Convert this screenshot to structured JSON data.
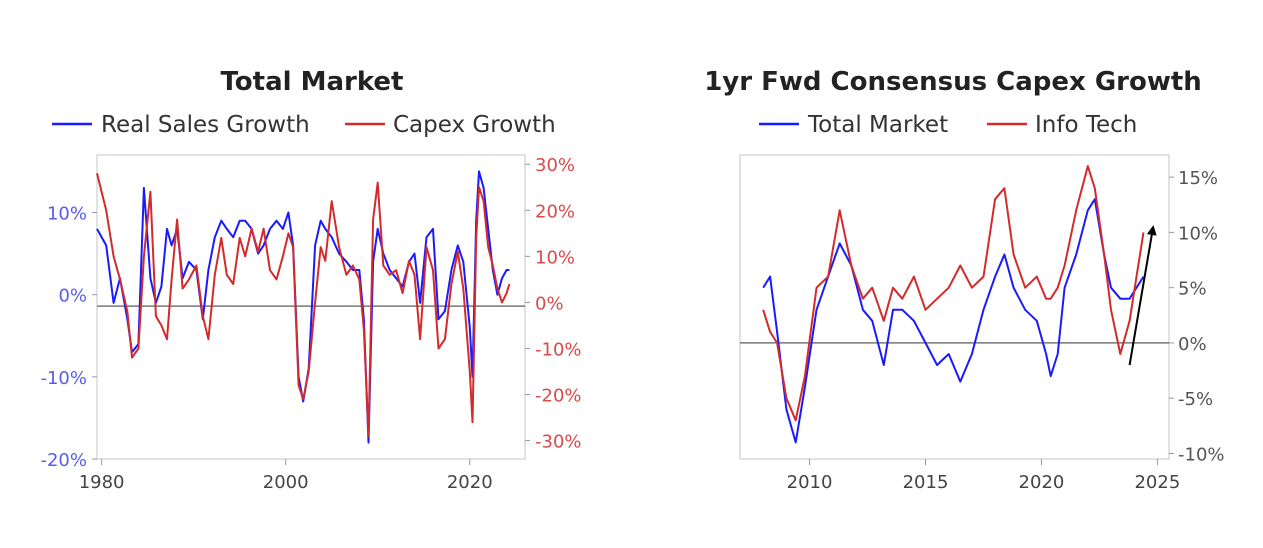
{
  "chart_data": [
    {
      "type": "line",
      "title": "Total Market",
      "xlabel": "",
      "ylabel": "",
      "x_range": [
        1979.5,
        2026
      ],
      "x_ticks": [
        1980,
        2000,
        2020
      ],
      "x_tick_labels": [
        "1980",
        "2000",
        "2020"
      ],
      "y_left": {
        "range": [
          -20,
          17
        ],
        "ticks": [
          10,
          0,
          -10,
          -20
        ],
        "tick_labels": [
          "10%",
          "0%",
          "-10%",
          "-20%"
        ],
        "color": "#5a5cf0"
      },
      "y_right": {
        "range": [
          -34,
          32
        ],
        "ticks": [
          30,
          20,
          10,
          0,
          -10,
          -20,
          -30
        ],
        "tick_labels": [
          "30%",
          "20%",
          "10%",
          "0%",
          "-10%",
          "-20%",
          "-30%"
        ],
        "color": "#d94a4a"
      },
      "zero_line_at": -1.4,
      "legend_position": "top",
      "series": [
        {
          "name": "Real Sales Growth",
          "axis": "left",
          "color": "#1a1aff",
          "x": [
            1979.5,
            1980.5,
            1981.3,
            1982,
            1982.8,
            1983.3,
            1984,
            1984.6,
            1985.3,
            1985.9,
            1986.5,
            1987.1,
            1987.6,
            1988.2,
            1988.8,
            1989.5,
            1990.3,
            1991,
            1991.6,
            1992.3,
            1993,
            1993.6,
            1994.3,
            1995,
            1995.6,
            1996.3,
            1997,
            1997.6,
            1998.3,
            1999,
            1999.7,
            2000.3,
            2000.8,
            2001.4,
            2001.9,
            2002.5,
            2003.2,
            2003.8,
            2004.3,
            2005,
            2005.8,
            2006.6,
            2007.3,
            2008,
            2008.5,
            2009,
            2009.5,
            2010,
            2010.6,
            2011.3,
            2012,
            2012.7,
            2013.4,
            2014,
            2014.6,
            2015.3,
            2016,
            2016.6,
            2017.3,
            2018,
            2018.7,
            2019.3,
            2020,
            2020.3,
            2020.7,
            2021,
            2021.5,
            2022,
            2022.5,
            2023,
            2023.5,
            2024,
            2024.3
          ],
          "y": [
            8,
            6,
            -1,
            2,
            -3,
            -7,
            -6,
            13,
            2,
            -1,
            1,
            8,
            6,
            8,
            2,
            4,
            3,
            -3,
            3,
            7,
            9,
            8,
            7,
            9,
            9,
            8,
            5,
            6,
            8,
            9,
            8,
            10,
            6,
            -10,
            -13,
            -9,
            6,
            9,
            8,
            7,
            5,
            4,
            3,
            3,
            -3,
            -18,
            4,
            8,
            5,
            3,
            2,
            1,
            4,
            5,
            -1,
            7,
            8,
            -3,
            -2,
            3,
            6,
            4,
            -4,
            -10,
            9,
            15,
            13,
            8,
            3,
            0,
            2,
            3,
            3
          ]
        },
        {
          "name": "Capex Growth",
          "axis": "right",
          "color": "#d22b2b",
          "x": [
            1979.5,
            1980.5,
            1981.3,
            1982,
            1982.8,
            1983.3,
            1984,
            1984.6,
            1985.3,
            1985.9,
            1986.5,
            1987.1,
            1987.6,
            1988.2,
            1988.8,
            1989.5,
            1990.3,
            1991,
            1991.6,
            1992.3,
            1993,
            1993.6,
            1994.3,
            1995,
            1995.6,
            1996.3,
            1997,
            1997.6,
            1998.3,
            1999,
            1999.7,
            2000.3,
            2000.8,
            2001.4,
            2001.9,
            2002.5,
            2003.2,
            2003.8,
            2004.3,
            2005,
            2005.8,
            2006.6,
            2007.3,
            2008,
            2008.5,
            2009,
            2009.5,
            2010,
            2010.6,
            2011.3,
            2012,
            2012.7,
            2013.4,
            2014,
            2014.6,
            2015.3,
            2016,
            2016.6,
            2017.3,
            2018,
            2018.7,
            2019.3,
            2020,
            2020.3,
            2020.7,
            2021,
            2021.5,
            2022,
            2022.5,
            2023,
            2023.5,
            2024,
            2024.3
          ],
          "y": [
            28,
            20,
            10,
            5,
            -2,
            -12,
            -10,
            10,
            24,
            -3,
            -5,
            -8,
            5,
            18,
            3,
            5,
            8,
            -3,
            -8,
            6,
            14,
            6,
            4,
            14,
            10,
            16,
            11,
            16,
            7,
            5,
            10,
            15,
            12,
            -18,
            -21,
            -15,
            0,
            12,
            9,
            22,
            12,
            6,
            8,
            5,
            -6,
            -29,
            18,
            26,
            8,
            6,
            7,
            2,
            9,
            6,
            -8,
            12,
            7,
            -10,
            -8,
            4,
            11,
            3,
            -15,
            -26,
            14,
            25,
            22,
            12,
            8,
            3,
            0,
            2,
            4
          ]
        }
      ]
    },
    {
      "type": "line",
      "title": "1yr Fwd Consensus Capex Growth",
      "xlabel": "",
      "ylabel": "",
      "x_range": [
        2007,
        2025.5
      ],
      "x_ticks": [
        2010,
        2015,
        2020,
        2025
      ],
      "x_tick_labels": [
        "2010",
        "2015",
        "2020",
        "2025"
      ],
      "y_right": {
        "range": [
          -10.5,
          17
        ],
        "ticks": [
          15,
          10,
          5,
          0,
          -5,
          -10
        ],
        "tick_labels": [
          "15%",
          "10%",
          "5%",
          "0%",
          "-5%",
          "-10%"
        ],
        "color": "#555555"
      },
      "zero_line_at": 0,
      "legend_position": "top",
      "annotation": {
        "type": "arrow",
        "from": [
          2023.8,
          -2
        ],
        "to": [
          2024.8,
          10.3
        ]
      },
      "series": [
        {
          "name": "Total Market",
          "axis": "right",
          "color": "#1a1aff",
          "x": [
            2008,
            2008.3,
            2008.6,
            2009,
            2009.4,
            2009.8,
            2010.3,
            2010.8,
            2011.3,
            2011.8,
            2012.3,
            2012.7,
            2013.2,
            2013.6,
            2014,
            2014.5,
            2015,
            2015.5,
            2016,
            2016.5,
            2017,
            2017.5,
            2018,
            2018.4,
            2018.8,
            2019.3,
            2019.8,
            2020.2,
            2020.4,
            2020.7,
            2021,
            2021.5,
            2022,
            2022.3,
            2022.7,
            2023,
            2023.4,
            2023.8,
            2024.1,
            2024.4
          ],
          "y": [
            5,
            6,
            1,
            -6,
            -9,
            -4,
            3,
            6,
            9,
            7,
            3,
            2,
            -2,
            3,
            3,
            2,
            0,
            -2,
            -1,
            -3.5,
            -1,
            3,
            6,
            8,
            5,
            3,
            2,
            -1,
            -3,
            -1,
            5,
            8,
            12,
            13,
            8,
            5,
            4,
            4,
            5,
            6
          ]
        },
        {
          "name": "Info Tech",
          "axis": "right",
          "color": "#d22b2b",
          "x": [
            2008,
            2008.3,
            2008.6,
            2009,
            2009.4,
            2009.8,
            2010.3,
            2010.8,
            2011.3,
            2011.8,
            2012.3,
            2012.7,
            2013.2,
            2013.6,
            2014,
            2014.5,
            2015,
            2015.5,
            2016,
            2016.5,
            2017,
            2017.5,
            2018,
            2018.4,
            2018.8,
            2019.3,
            2019.8,
            2020.2,
            2020.4,
            2020.7,
            2021,
            2021.5,
            2022,
            2022.3,
            2022.7,
            2023,
            2023.4,
            2023.8,
            2024.1,
            2024.4
          ],
          "y": [
            3,
            1,
            0,
            -5,
            -7,
            -3,
            5,
            6,
            12,
            7,
            4,
            5,
            2,
            5,
            4,
            6,
            3,
            4,
            5,
            7,
            5,
            6,
            13,
            14,
            8,
            5,
            6,
            4,
            4,
            5,
            7,
            12,
            16,
            14,
            8,
            3,
            -1,
            2,
            6,
            10
          ]
        }
      ]
    }
  ]
}
